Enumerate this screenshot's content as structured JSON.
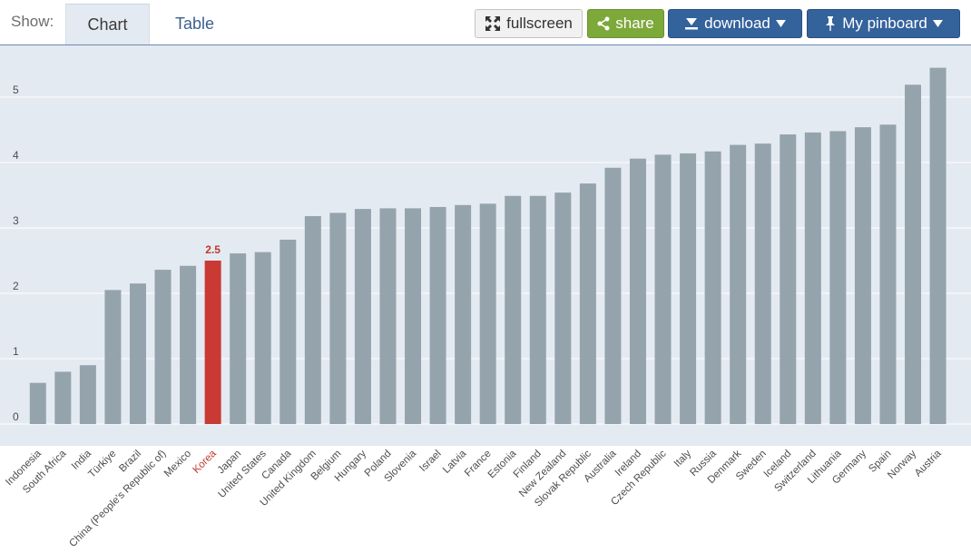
{
  "toolbar": {
    "show_label": "Show:",
    "tabs": [
      {
        "label": "Chart"
      },
      {
        "label": "Table"
      }
    ],
    "fullscreen_label": "fullscreen",
    "share_label": "share",
    "download_label": "download",
    "pinboard_label": "My pinboard"
  },
  "icons": {
    "fullscreen": "fullscreen-icon",
    "share": "share-icon",
    "download": "download-icon",
    "pinboard": "pin-icon",
    "dropdown": "caret-down-icon"
  },
  "colors": {
    "bar": "#95a3ad",
    "highlight": "#c93a35",
    "plot_background": "#e4eaf1",
    "tab_link": "#3d5f8f",
    "share_button": "#7da83a",
    "primary_button": "#34629b"
  },
  "chart_data": {
    "type": "bar",
    "title": "",
    "xlabel": "",
    "ylabel": "",
    "ylim": [
      0,
      5.5
    ],
    "yticks": [
      0,
      1,
      2,
      3,
      4,
      5
    ],
    "grid": true,
    "categories": [
      "Indonesia",
      "South Africa",
      "India",
      "Türkiye",
      "Brazil",
      "China (People's Republic of)",
      "Mexico",
      "Korea",
      "Japan",
      "United States",
      "Canada",
      "United Kingdom",
      "Belgium",
      "Hungary",
      "Poland",
      "Slovenia",
      "Israel",
      "Latvia",
      "France",
      "Estonia",
      "Finland",
      "New Zealand",
      "Slovak Republic",
      "Australia",
      "Ireland",
      "Czech Republic",
      "Italy",
      "Russia",
      "Denmark",
      "Sweden",
      "Iceland",
      "Switzerland",
      "Lithuania",
      "Germany",
      "Spain",
      "Norway",
      "Austria"
    ],
    "values": [
      0.63,
      0.8,
      0.9,
      2.05,
      2.15,
      2.36,
      2.42,
      2.5,
      2.61,
      2.63,
      2.82,
      3.18,
      3.23,
      3.29,
      3.3,
      3.3,
      3.32,
      3.35,
      3.37,
      3.49,
      3.49,
      3.54,
      3.68,
      3.92,
      4.06,
      4.12,
      4.14,
      4.17,
      4.27,
      4.29,
      4.43,
      4.46,
      4.48,
      4.54,
      4.58,
      5.19,
      5.45
    ],
    "highlight": {
      "category": "Korea",
      "value_label": "2.5"
    }
  }
}
